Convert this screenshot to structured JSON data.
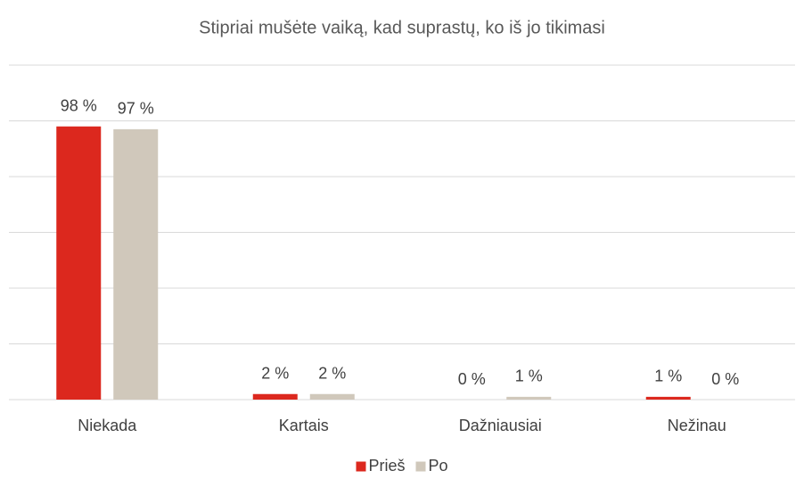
{
  "chart_data": {
    "type": "bar",
    "title": "Stipriai mušėte vaiką, kad suprastų, ko iš jo tikimasi",
    "categories": [
      "Niekada",
      "Kartais",
      "Dažniausiai",
      "Nežinau"
    ],
    "series": [
      {
        "name": "Prieš",
        "color": "#dc281e",
        "values": [
          98,
          2,
          0,
          1
        ],
        "value_labels": [
          "98 %",
          "2 %",
          "0 %",
          "1 %"
        ]
      },
      {
        "name": "Po",
        "color": "#d0c8bb",
        "values": [
          97,
          2,
          1,
          0
        ],
        "value_labels": [
          "97 %",
          "2 %",
          "1 %",
          "0 %"
        ]
      }
    ],
    "ylim": [
      0,
      120
    ],
    "yticks": [
      0,
      20,
      40,
      60,
      80,
      100,
      120
    ],
    "ytick_labels": false,
    "grid": true,
    "legend": "bottom"
  }
}
